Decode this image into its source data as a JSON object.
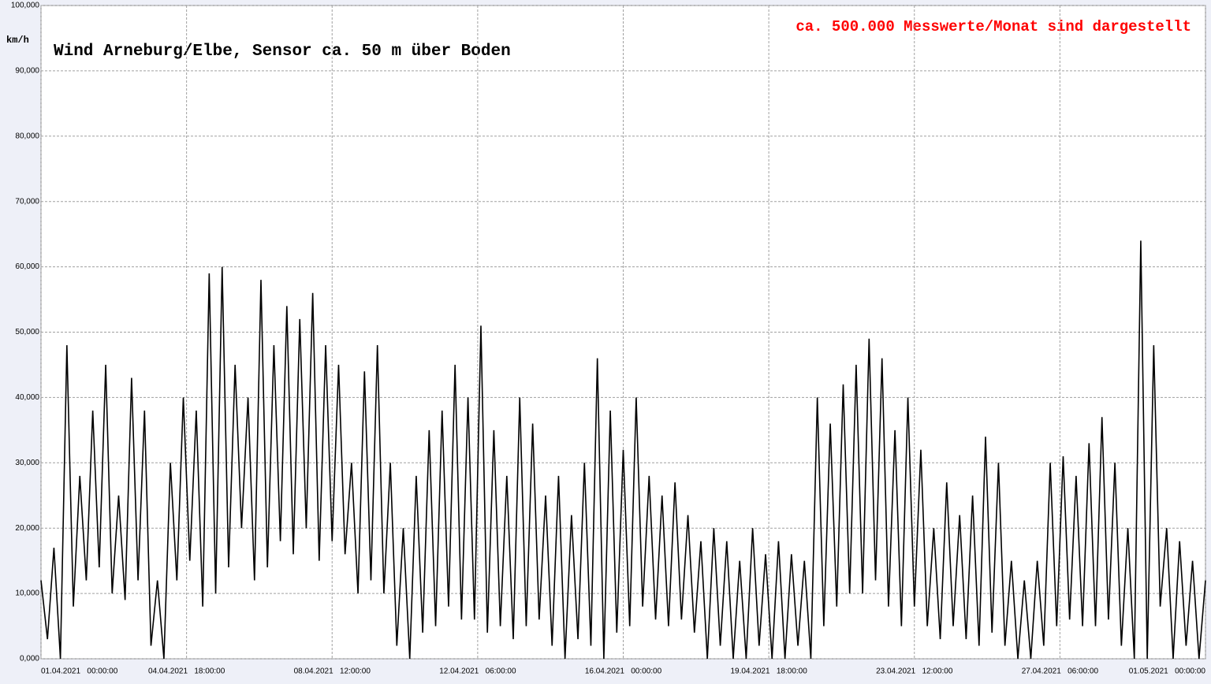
{
  "chart_data": {
    "type": "line",
    "title": "Wind  Arneburg/Elbe, Sensor ca. 50 m über Boden",
    "annotation": "ca. 500.000 Messwerte/Monat sind dargestellt",
    "y_label": "km/h",
    "color": "#000000",
    "grid": true,
    "xlim": [
      0,
      720
    ],
    "xticks": [
      {
        "value": 0,
        "label": "01.04.2021   00:00:00"
      },
      {
        "value": 90,
        "label": "04.04.2021   18:00:00"
      },
      {
        "value": 180,
        "label": "08.04.2021   12:00:00"
      },
      {
        "value": 270,
        "label": "12.04.2021   06:00:00"
      },
      {
        "value": 360,
        "label": "16.04.2021   00:00:00"
      },
      {
        "value": 450,
        "label": "19.04.2021   18:00:00"
      },
      {
        "value": 540,
        "label": "23.04.2021   12:00:00"
      },
      {
        "value": 630,
        "label": "27.04.2021   06:00:00"
      },
      {
        "value": 720,
        "label": "01.05.2021   00:00:00"
      }
    ],
    "ylim": [
      0,
      100
    ],
    "yticks": [
      {
        "value": 0,
        "label": "0,000"
      },
      {
        "value": 10,
        "label": "10,000"
      },
      {
        "value": 20,
        "label": "20,000"
      },
      {
        "value": 30,
        "label": "30,000"
      },
      {
        "value": 40,
        "label": "40,000"
      },
      {
        "value": 50,
        "label": "50,000"
      },
      {
        "value": 60,
        "label": "60,000"
      },
      {
        "value": 70,
        "label": "70,000"
      },
      {
        "value": 80,
        "label": "80,000"
      },
      {
        "value": 90,
        "label": "90,000"
      },
      {
        "value": 100,
        "label": "100,000"
      }
    ],
    "x": [
      0,
      4,
      8,
      12,
      16,
      20,
      24,
      28,
      32,
      36,
      40,
      44,
      48,
      52,
      56,
      60,
      64,
      68,
      72,
      76,
      80,
      84,
      88,
      92,
      96,
      100,
      104,
      108,
      112,
      116,
      120,
      124,
      128,
      132,
      136,
      140,
      144,
      148,
      152,
      156,
      160,
      164,
      168,
      172,
      176,
      180,
      184,
      188,
      192,
      196,
      200,
      204,
      208,
      212,
      216,
      220,
      224,
      228,
      232,
      236,
      240,
      244,
      248,
      252,
      256,
      260,
      264,
      268,
      272,
      276,
      280,
      284,
      288,
      292,
      296,
      300,
      304,
      308,
      312,
      316,
      320,
      324,
      328,
      332,
      336,
      340,
      344,
      348,
      352,
      356,
      360,
      364,
      368,
      372,
      376,
      380,
      384,
      388,
      392,
      396,
      400,
      404,
      408,
      412,
      416,
      420,
      424,
      428,
      432,
      436,
      440,
      444,
      448,
      452,
      456,
      460,
      464,
      468,
      472,
      476,
      480,
      484,
      488,
      492,
      496,
      500,
      504,
      508,
      512,
      516,
      520,
      524,
      528,
      532,
      536,
      540,
      544,
      548,
      552,
      556,
      560,
      564,
      568,
      572,
      576,
      580,
      584,
      588,
      592,
      596,
      600,
      604,
      608,
      612,
      616,
      620,
      624,
      628,
      632,
      636,
      640,
      644,
      648,
      652,
      656,
      660,
      664,
      668,
      672,
      676,
      680,
      684,
      688,
      692,
      696,
      700,
      704,
      708,
      712,
      716,
      720
    ],
    "values": [
      12,
      3,
      17,
      0,
      48,
      8,
      28,
      12,
      38,
      14,
      45,
      10,
      25,
      9,
      43,
      12,
      38,
      2,
      12,
      0,
      30,
      12,
      40,
      15,
      38,
      8,
      59,
      10,
      60,
      14,
      45,
      20,
      40,
      12,
      58,
      14,
      48,
      18,
      54,
      16,
      52,
      20,
      56,
      15,
      48,
      18,
      45,
      16,
      30,
      10,
      44,
      12,
      48,
      10,
      30,
      2,
      20,
      0,
      28,
      4,
      35,
      5,
      38,
      8,
      45,
      6,
      40,
      6,
      51,
      4,
      35,
      5,
      28,
      3,
      40,
      5,
      36,
      6,
      25,
      2,
      28,
      0,
      22,
      3,
      30,
      2,
      46,
      0,
      38,
      4,
      32,
      5,
      40,
      8,
      28,
      6,
      25,
      5,
      27,
      6,
      22,
      4,
      18,
      0,
      20,
      2,
      18,
      0,
      15,
      0,
      20,
      2,
      16,
      0,
      18,
      0,
      16,
      2,
      15,
      0,
      40,
      5,
      36,
      8,
      42,
      10,
      45,
      10,
      49,
      12,
      46,
      8,
      35,
      5,
      40,
      8,
      32,
      5,
      20,
      3,
      27,
      5,
      22,
      3,
      25,
      2,
      34,
      4,
      30,
      2,
      15,
      0,
      12,
      0,
      15,
      2,
      30,
      5,
      31,
      6,
      28,
      5,
      33,
      5,
      37,
      6,
      30,
      2,
      20,
      0,
      64,
      0,
      48,
      8,
      20,
      0,
      18,
      2,
      15,
      0,
      12
    ]
  }
}
